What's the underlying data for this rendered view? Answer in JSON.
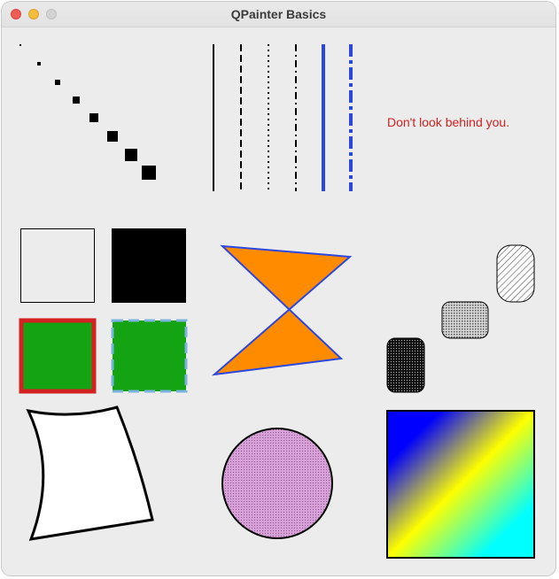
{
  "window": {
    "title": "QPainter Basics"
  },
  "canvas": {
    "text_label": "Don't look behind you.",
    "text_color": "#cc2222"
  },
  "colors": {
    "accent_blue": "#2b47e0",
    "orange_fill": "#ff8c00",
    "green_fill": "#13a313",
    "red_outline": "#d42222",
    "pie_fill": "#c88ac8",
    "gradient": [
      "#0000ff",
      "#ffff00",
      "#00ffff"
    ]
  }
}
